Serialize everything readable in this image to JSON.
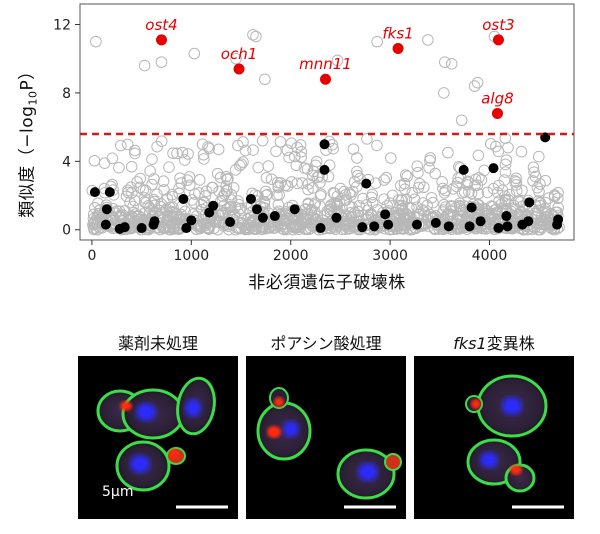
{
  "chart_data": {
    "type": "scatter",
    "xlabel": "非必須遺伝子破壊株",
    "ylabel": "類似度（−log",
    "ylabel_sub": "10",
    "ylabel_tail": "P）",
    "xlim": [
      -120,
      4850
    ],
    "ylim": [
      -0.6,
      13.2
    ],
    "xticks": [
      "0",
      "1000",
      "2000",
      "3000",
      "4000"
    ],
    "yticks": [
      "0",
      "4",
      "8",
      "12"
    ],
    "threshold": 5.6,
    "threshold_color": "#d7191c",
    "gray_color": "#b8b8b8",
    "black_color": "#000000",
    "highlight_color": "#e60000",
    "highlighted_series": {
      "name": "",
      "points": [
        {
          "label": "ost4",
          "x": 700,
          "y": 11.1
        },
        {
          "label": "och1",
          "x": 1480,
          "y": 9.4
        },
        {
          "label": "mnn11",
          "x": 2350,
          "y": 8.8
        },
        {
          "label": "fks1",
          "x": 3080,
          "y": 10.6
        },
        {
          "label": "ost3",
          "x": 4090,
          "y": 11.1
        },
        {
          "label": "alg8",
          "x": 4080,
          "y": 6.8
        }
      ]
    },
    "black_series": {
      "points": [
        [
          30,
          2.2
        ],
        [
          180,
          2.2
        ],
        [
          150,
          1.2
        ],
        [
          140,
          0.3
        ],
        [
          280,
          0.05
        ],
        [
          330,
          0.15
        ],
        [
          620,
          0.3
        ],
        [
          630,
          0.5
        ],
        [
          920,
          1.8
        ],
        [
          950,
          0.1
        ],
        [
          1000,
          0.55
        ],
        [
          1180,
          1.0
        ],
        [
          1220,
          1.4
        ],
        [
          1390,
          0.45
        ],
        [
          1600,
          1.8
        ],
        [
          1660,
          1.2
        ],
        [
          1720,
          0.7
        ],
        [
          1840,
          0.8
        ],
        [
          2040,
          1.2
        ],
        [
          2300,
          0.1
        ],
        [
          2340,
          5.0
        ],
        [
          2340,
          3.5
        ],
        [
          2460,
          0.7
        ],
        [
          2720,
          0.15
        ],
        [
          2760,
          2.7
        ],
        [
          2840,
          0.2
        ],
        [
          2950,
          0.9
        ],
        [
          2980,
          0.3
        ],
        [
          3270,
          0.3
        ],
        [
          3460,
          0.4
        ],
        [
          3590,
          0.2
        ],
        [
          3740,
          3.5
        ],
        [
          3800,
          0.2
        ],
        [
          3820,
          1.3
        ],
        [
          3910,
          0.5
        ],
        [
          4040,
          3.6
        ],
        [
          4090,
          0.1
        ],
        [
          4170,
          0.8
        ],
        [
          4330,
          0.3
        ],
        [
          4390,
          0.5
        ],
        [
          4400,
          1.6
        ],
        [
          4560,
          5.4
        ],
        [
          4680,
          0.3
        ],
        [
          4690,
          0.6
        ],
        [
          4180,
          0.2
        ],
        [
          500,
          0.1
        ]
      ]
    },
    "gray_outliers": [
      [
        40,
        11.0
      ],
      [
        530,
        9.6
      ],
      [
        1030,
        10.3
      ],
      [
        1650,
        11.3
      ],
      [
        1620,
        11.4
      ],
      [
        2470,
        9.9
      ],
      [
        2870,
        11.0
      ],
      [
        3380,
        11.1
      ],
      [
        3550,
        9.8
      ],
      [
        3620,
        9.7
      ],
      [
        3880,
        8.6
      ],
      [
        3850,
        8.4
      ],
      [
        3720,
        6.4
      ],
      [
        3540,
        8.0
      ],
      [
        1450,
        10.0
      ],
      [
        4050,
        11.3
      ],
      [
        700,
        9.8
      ],
      [
        1740,
        8.8
      ]
    ],
    "gray_series_description_count": 1200
  },
  "panels": [
    {
      "title": "薬剤未処理",
      "title_italic": "",
      "title_rest": ""
    },
    {
      "title": "ポアシン酸処理",
      "title_italic": "",
      "title_rest": ""
    },
    {
      "title": "",
      "title_italic": "fks1",
      "title_rest": "変異株"
    }
  ],
  "scale_bar_label": "5μm",
  "colors": {
    "cell_wall": "#3ddc4a",
    "nucleus": "#2a2aff",
    "spot": "#ff2a10",
    "background": "#000000"
  }
}
